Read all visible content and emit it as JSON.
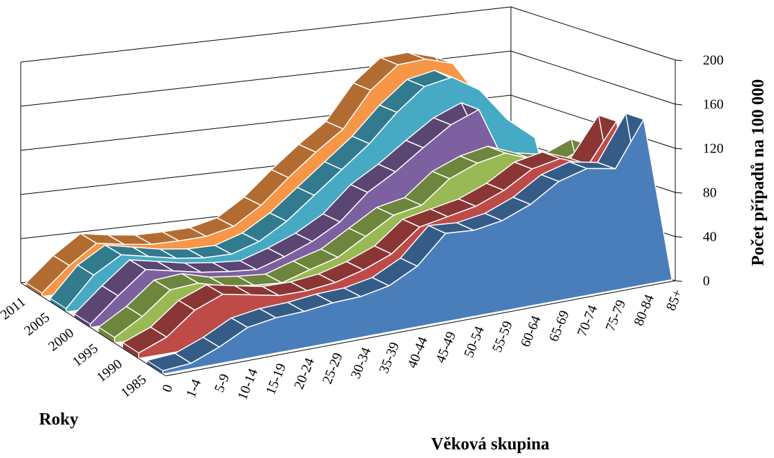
{
  "chart_data": {
    "type": "area3d",
    "x_label": "Věková skupina",
    "y_label": "Počet případů na 100 000",
    "series_label": "Roky",
    "categories": [
      "0",
      "1-4",
      "5-9",
      "10-14",
      "15-19",
      "20-24",
      "25-29",
      "30-34",
      "35-39",
      "40-44",
      "45-49",
      "50-54",
      "55-59",
      "60-64",
      "65-69",
      "70-74",
      "75-79",
      "80-84",
      "85+"
    ],
    "series": [
      {
        "name": "1985",
        "color": "#4a7ebb",
        "values": [
          3,
          5,
          15,
          28,
          32,
          33,
          36,
          37,
          42,
          55,
          80,
          78,
          82,
          92,
          108,
          115,
          110,
          150,
          0
        ]
      },
      {
        "name": "1990",
        "color": "#be4b48",
        "values": [
          5,
          15,
          35,
          45,
          40,
          35,
          35,
          38,
          45,
          55,
          75,
          80,
          85,
          95,
          110,
          115,
          105,
          140,
          0
        ]
      },
      {
        "name": "1995",
        "color": "#98b954",
        "values": [
          5,
          20,
          40,
          42,
          35,
          32,
          30,
          38,
          45,
          60,
          75,
          80,
          100,
          110,
          115,
          105,
          100,
          110,
          0
        ]
      },
      {
        "name": "2000",
        "color": "#7d60a0",
        "values": [
          3,
          25,
          45,
          40,
          35,
          32,
          30,
          38,
          48,
          62,
          85,
          100,
          118,
          135,
          145,
          90,
          80,
          80,
          0
        ]
      },
      {
        "name": "2005",
        "color": "#46aac5",
        "values": [
          3,
          30,
          45,
          40,
          35,
          32,
          32,
          40,
          55,
          75,
          95,
          115,
          140,
          160,
          165,
          150,
          120,
          100,
          0
        ]
      },
      {
        "name": "2011",
        "color": "#f79646",
        "values": [
          3,
          25,
          42,
          38,
          35,
          35,
          36,
          42,
          58,
          80,
          100,
          118,
          150,
          170,
          172,
          165,
          130,
          100,
          0
        ]
      }
    ],
    "ylim": [
      0,
      200
    ],
    "yticks": [
      0,
      40,
      80,
      120,
      160,
      200
    ],
    "grid": true
  }
}
